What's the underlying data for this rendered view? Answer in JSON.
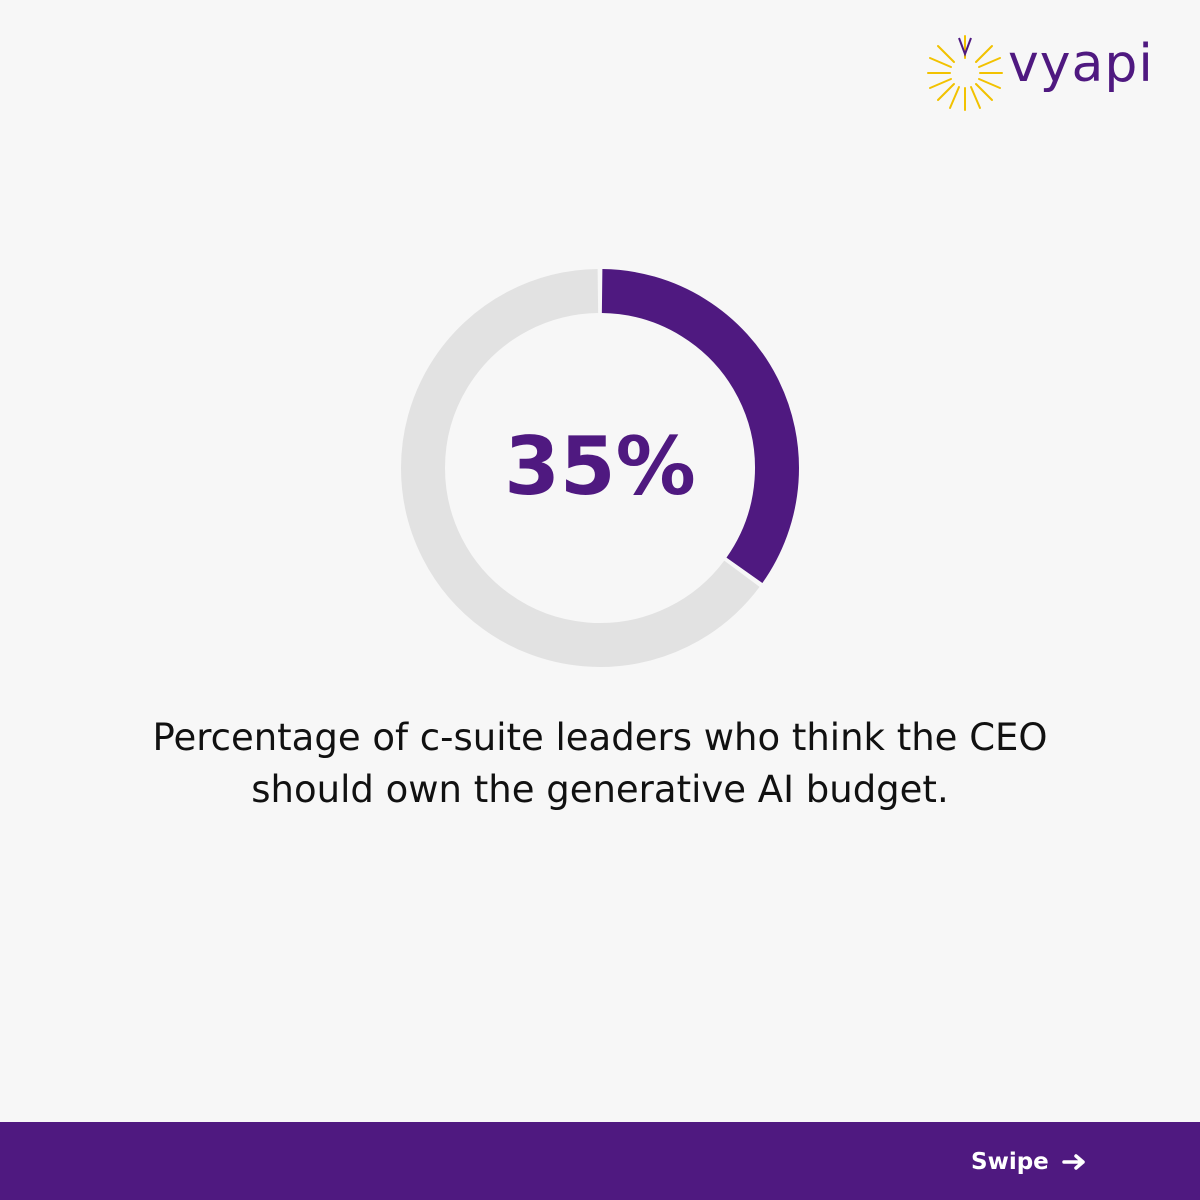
{
  "brand": "vyapi",
  "chart_data": {
    "type": "donut",
    "values": [
      35
    ],
    "value_labels": [
      "35%"
    ],
    "ylim": [
      0,
      100
    ],
    "color": "#4f1980",
    "track_color": "#e2e2e2"
  },
  "caption": "Percentage of c-suite leaders who think the CEO should own the generative AI budget.",
  "footer": {
    "button": "Swipe"
  }
}
